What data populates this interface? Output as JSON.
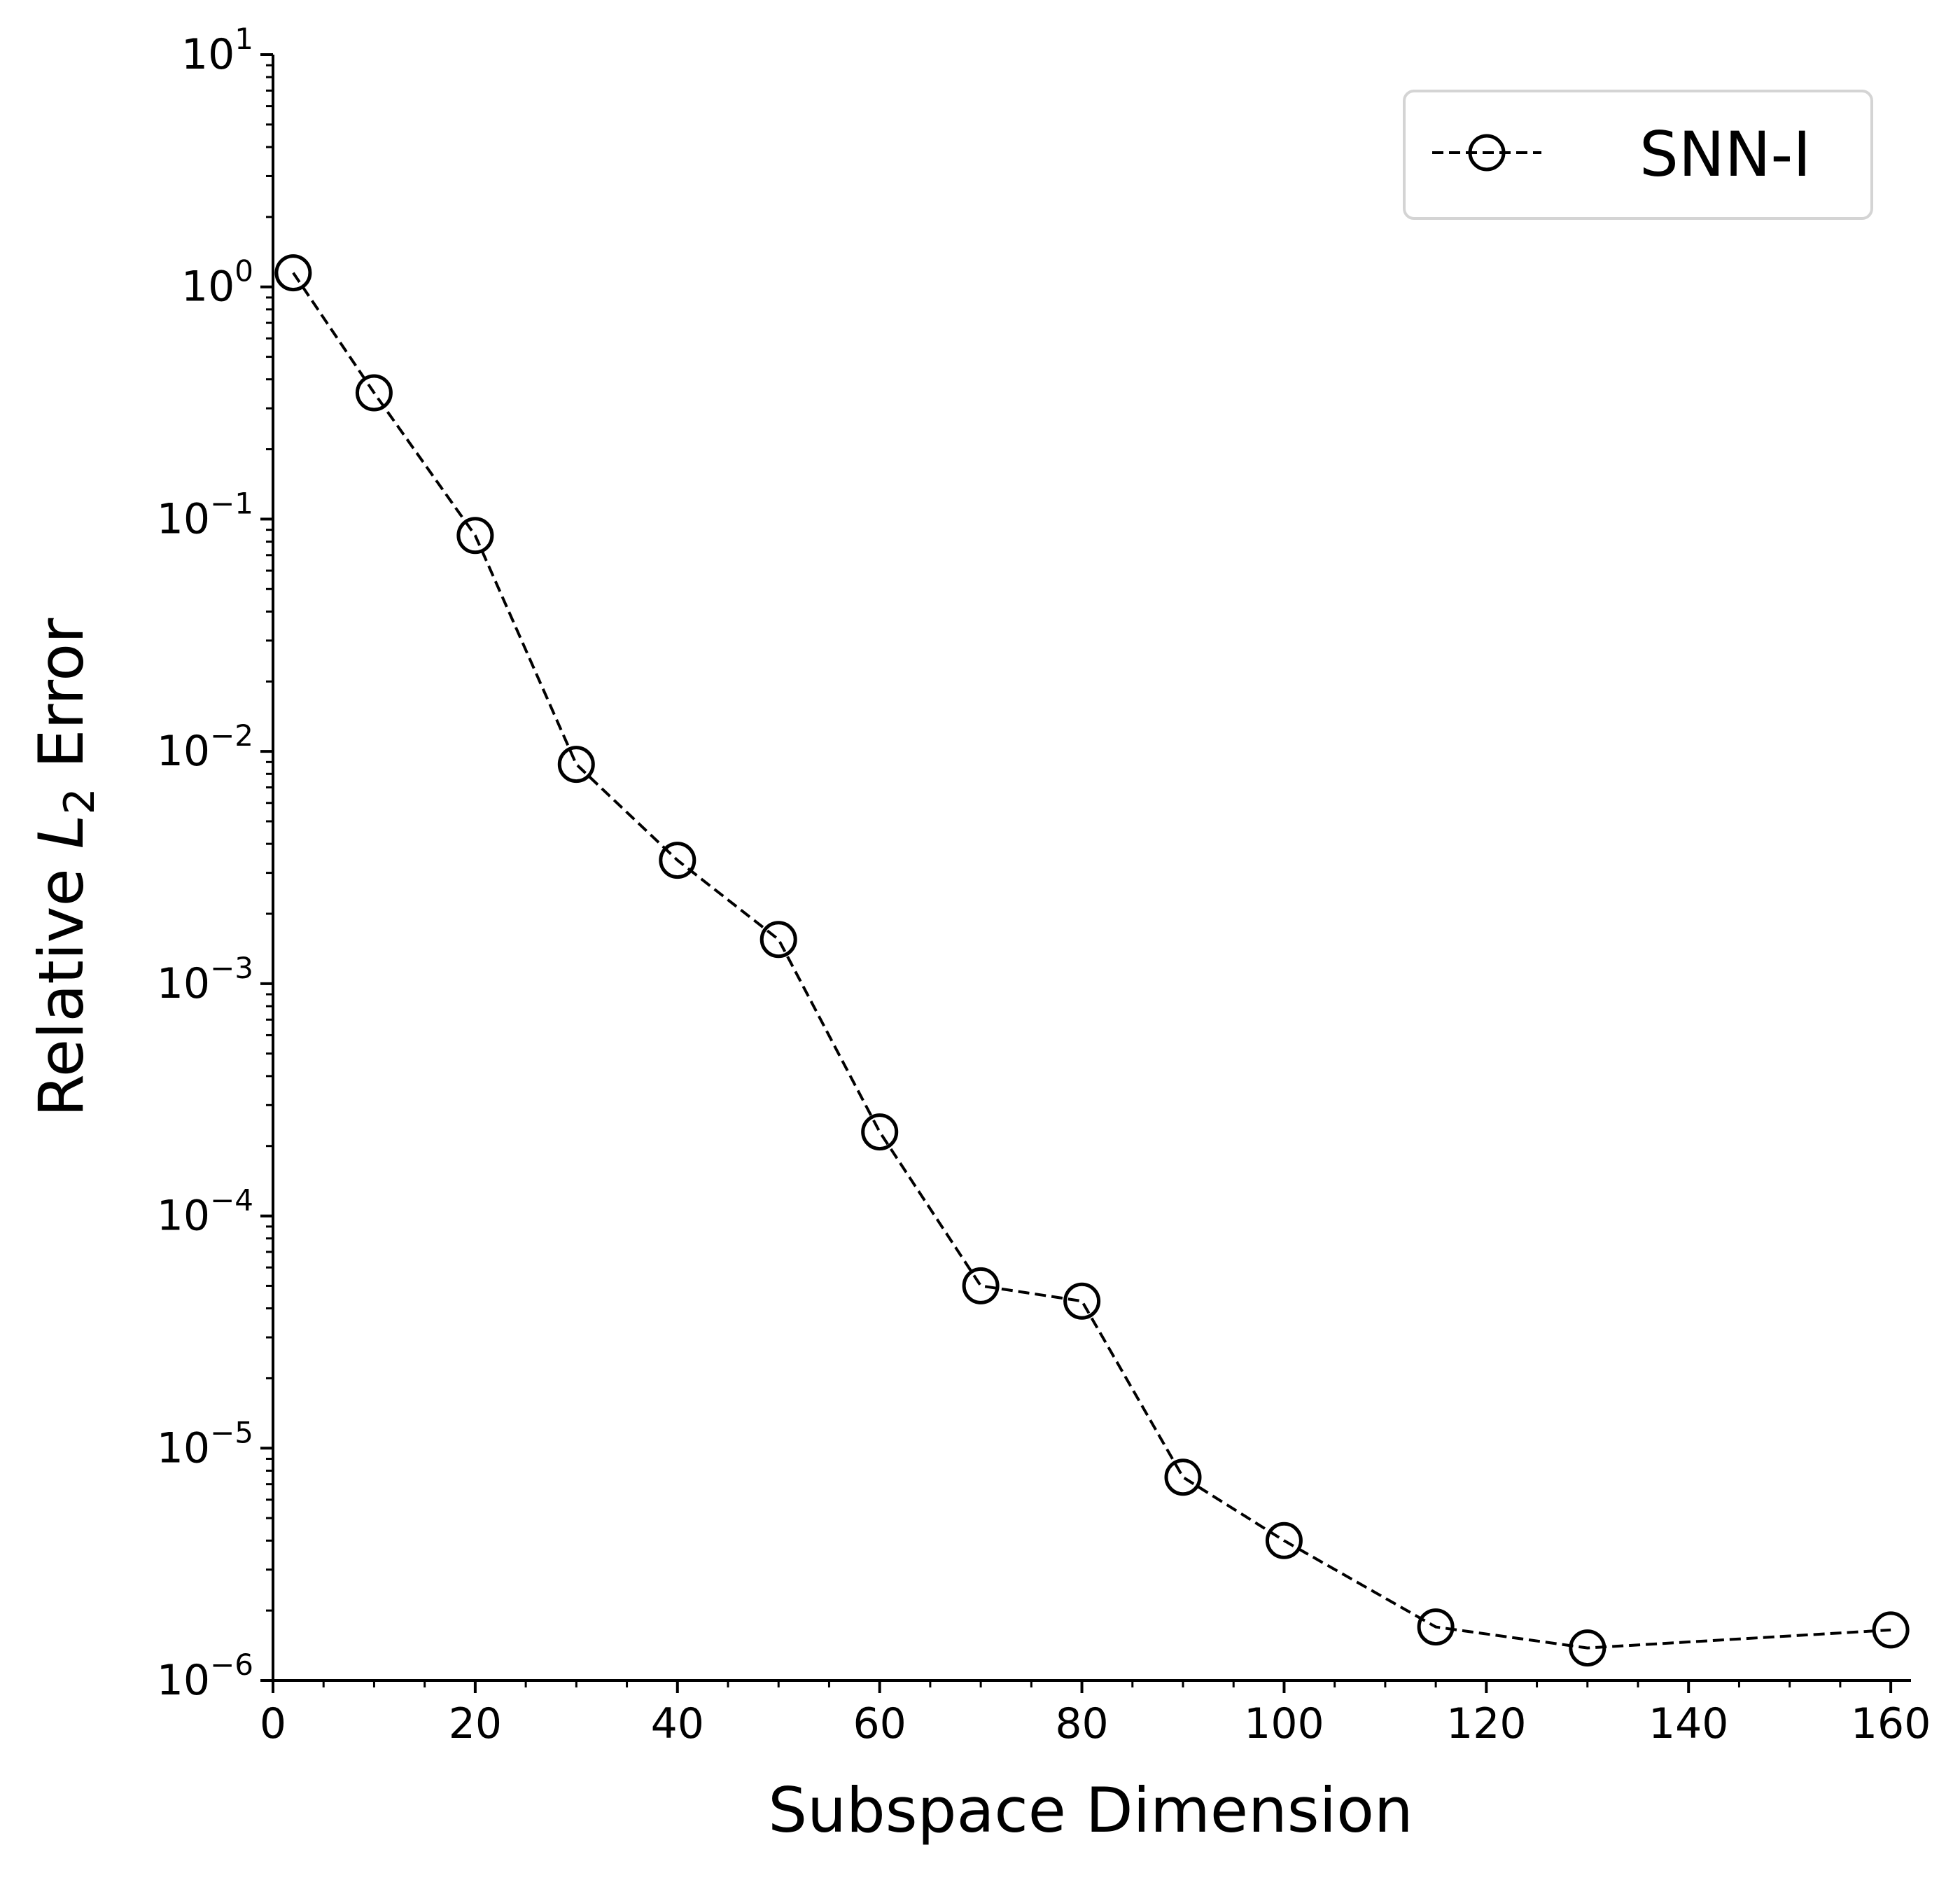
{
  "chart_data": {
    "type": "line",
    "xlabel": "Subspace Dimension",
    "ylabel": {
      "prefix": "Relative ",
      "symbol": "L",
      "subscript": "2",
      "suffix": " Error"
    },
    "xlim": [
      0,
      162
    ],
    "ylim": [
      1e-06,
      10
    ],
    "yscale": "log",
    "grid": false,
    "legend_position": "top-right",
    "x_ticks": [
      0,
      20,
      40,
      60,
      80,
      100,
      120,
      140,
      160
    ],
    "x_tick_labels": [
      "0",
      "20",
      "40",
      "60",
      "80",
      "100",
      "120",
      "140",
      "160"
    ],
    "y_tick_labels": [
      {
        "value": 1e-06,
        "base": "10",
        "exponent": "−6"
      },
      {
        "value": 1e-05,
        "base": "10",
        "exponent": "−5"
      },
      {
        "value": 0.0001,
        "base": "10",
        "exponent": "−4"
      },
      {
        "value": 0.001,
        "base": "10",
        "exponent": "−3"
      },
      {
        "value": 0.01,
        "base": "10",
        "exponent": "−2"
      },
      {
        "value": 0.1,
        "base": "10",
        "exponent": "−1"
      },
      {
        "value": 1,
        "base": "10",
        "exponent": "0"
      },
      {
        "value": 10,
        "base": "10",
        "exponent": "1"
      }
    ],
    "series": [
      {
        "name": "SNN-I",
        "color": "#000000",
        "line_style": "dashed",
        "marker": "open-circle",
        "x": [
          2,
          10,
          20,
          30,
          40,
          50,
          60,
          70,
          80,
          90,
          100,
          115,
          130,
          160
        ],
        "y": [
          1.15,
          0.35,
          0.085,
          0.0088,
          0.0034,
          0.00155,
          0.00023,
          5e-05,
          4.3e-05,
          7.5e-06,
          4e-06,
          1.7e-06,
          1.38e-06,
          1.65e-06
        ]
      }
    ]
  }
}
